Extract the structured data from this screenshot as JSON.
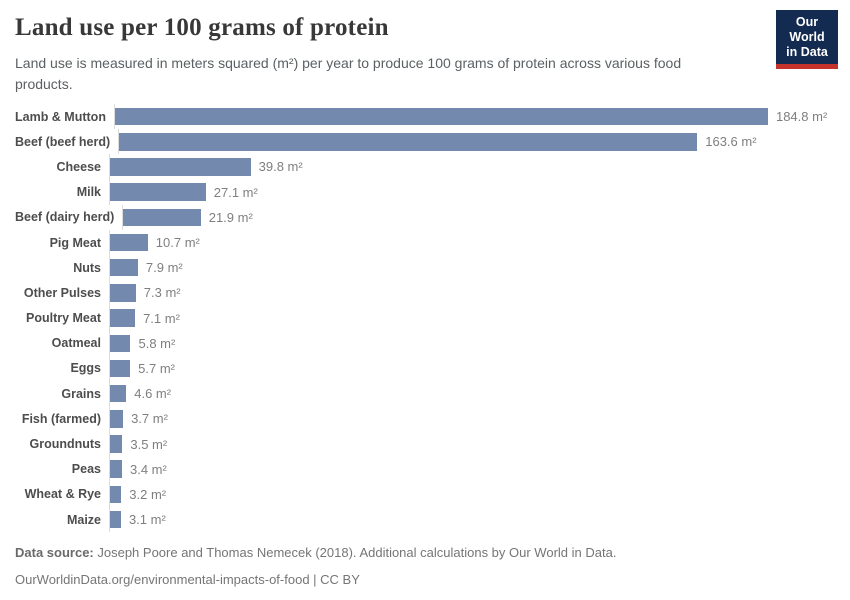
{
  "header": {
    "title": "Land use per 100 grams of protein",
    "subtitle": "Land use is measured in meters squared (m²) per year to produce 100 grams of protein across various food products."
  },
  "logo": {
    "line1": "Our World",
    "line2": "in Data",
    "bg_color": "#132b50",
    "accent_color": "#c5342b"
  },
  "chart_data": {
    "type": "bar",
    "orientation": "horizontal",
    "title": "Land use per 100 grams of protein",
    "unit": "m²",
    "xlabel": "",
    "ylabel": "",
    "xlim": [
      0,
      185
    ],
    "grid": false,
    "bar_color": "#7389ae",
    "categories": [
      "Lamb & Mutton",
      "Beef (beef herd)",
      "Cheese",
      "Milk",
      "Beef (dairy herd)",
      "Pig Meat",
      "Nuts",
      "Other Pulses",
      "Poultry Meat",
      "Oatmeal",
      "Eggs",
      "Grains",
      "Fish (farmed)",
      "Groundnuts",
      "Peas",
      "Wheat & Rye",
      "Maize"
    ],
    "values": [
      184.8,
      163.6,
      39.8,
      27.1,
      21.9,
      10.7,
      7.9,
      7.3,
      7.1,
      5.8,
      5.7,
      4.6,
      3.7,
      3.5,
      3.4,
      3.2,
      3.1
    ],
    "value_labels": [
      "184.8 m²",
      "163.6 m²",
      "39.8 m²",
      "27.1 m²",
      "21.9 m²",
      "10.7 m²",
      "7.9 m²",
      "7.3 m²",
      "7.1 m²",
      "5.8 m²",
      "5.7 m²",
      "4.6 m²",
      "3.7 m²",
      "3.5 m²",
      "3.4 m²",
      "3.2 m²",
      "3.1 m²"
    ]
  },
  "footer": {
    "source_label": "Data source:",
    "source_text": " Joseph Poore and Thomas Nemecek (2018). Additional calculations by Our World in Data.",
    "link_line": "OurWorldinData.org/environmental-impacts-of-food | CC BY"
  }
}
